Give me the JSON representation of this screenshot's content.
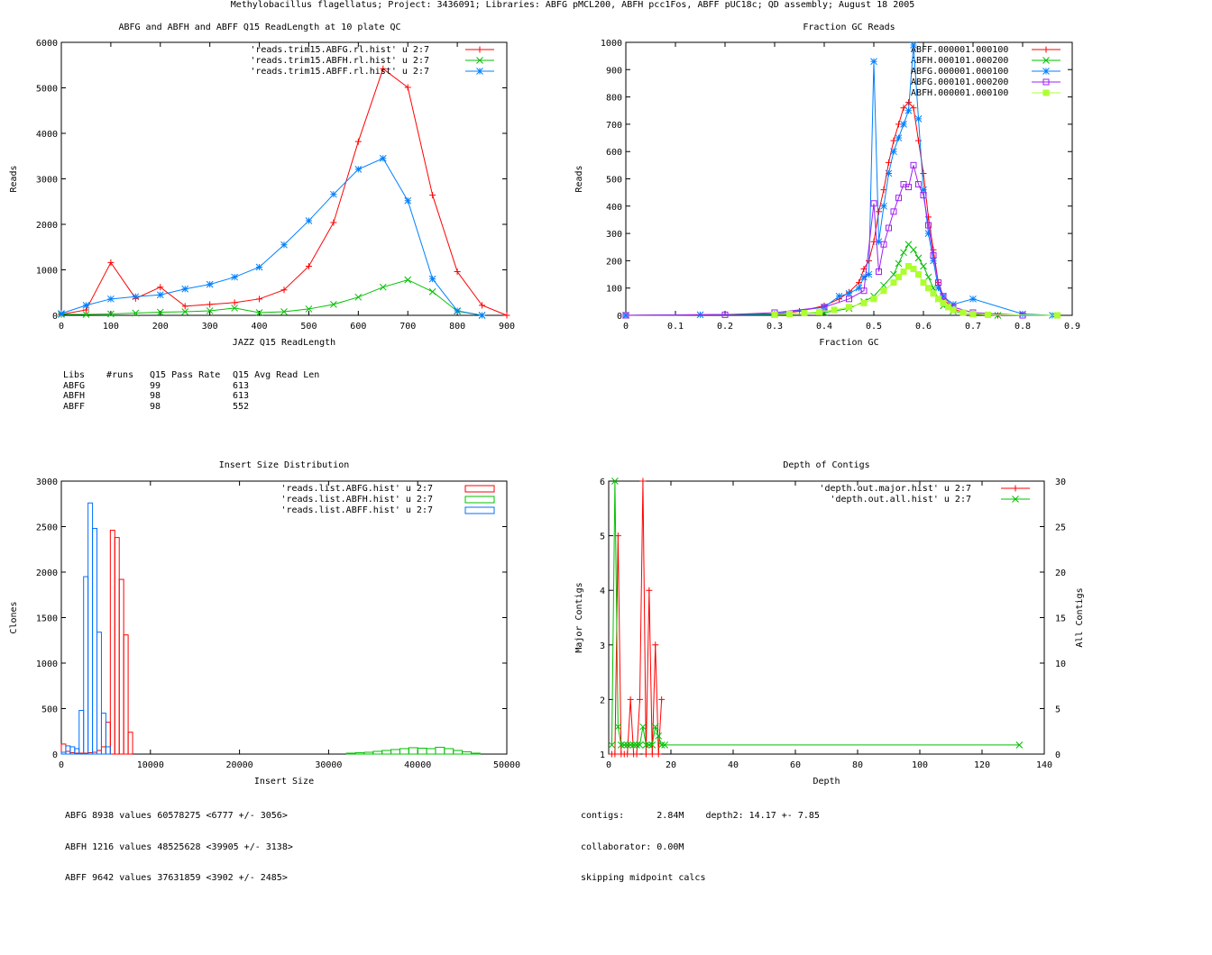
{
  "page_title": "Methylobacillus flagellatus; Project: 3436091; Libraries: ABFG pMCL200, ABFH pcc1Fos, ABFF pUC18c; QD assembly; August 18 2005",
  "chart_data": [
    {
      "id": "readlength",
      "type": "line",
      "title": "ABFG and ABFH and ABFF Q15 ReadLength at 10 plate QC",
      "xlabel": "JAZZ Q15 ReadLength",
      "ylabel": "Reads",
      "xlim": [
        0,
        900
      ],
      "ylim": [
        0,
        6000
      ],
      "xticks": [
        0,
        100,
        200,
        300,
        400,
        500,
        600,
        700,
        800,
        900
      ],
      "yticks": [
        0,
        1000,
        2000,
        3000,
        4000,
        5000,
        6000
      ],
      "legend_position": "top-right",
      "series": [
        {
          "name": "'reads.trim15.ABFG.rl.hist' u 2:7",
          "color": "#ff0000",
          "marker": "plus",
          "x": [
            0,
            50,
            100,
            150,
            200,
            250,
            300,
            350,
            400,
            450,
            500,
            550,
            600,
            650,
            700,
            750,
            800,
            850,
            900
          ],
          "y": [
            20,
            120,
            1160,
            370,
            620,
            200,
            240,
            280,
            360,
            560,
            1080,
            2040,
            3820,
            5420,
            5010,
            2640,
            960,
            220,
            0
          ]
        },
        {
          "name": "'reads.trim15.ABFH.rl.hist' u 2:7",
          "color": "#00c000",
          "marker": "cross",
          "x": [
            0,
            50,
            100,
            150,
            200,
            250,
            300,
            350,
            400,
            450,
            500,
            550,
            600,
            650,
            700,
            750,
            800,
            850
          ],
          "y": [
            20,
            20,
            30,
            50,
            70,
            80,
            100,
            160,
            60,
            80,
            140,
            240,
            400,
            620,
            780,
            520,
            90,
            0
          ]
        },
        {
          "name": "'reads.trim15.ABFF.rl.hist' u 2:7",
          "color": "#0080ff",
          "marker": "star",
          "x": [
            0,
            50,
            100,
            150,
            200,
            250,
            300,
            350,
            400,
            450,
            500,
            550,
            600,
            650,
            700,
            750,
            800,
            850
          ],
          "y": [
            40,
            220,
            360,
            410,
            450,
            580,
            680,
            840,
            1060,
            1550,
            2080,
            2660,
            3210,
            3450,
            2520,
            800,
            100,
            0
          ]
        }
      ]
    },
    {
      "id": "gc",
      "type": "line",
      "title": "Fraction GC Reads",
      "xlabel": "Fraction GC",
      "ylabel": "Reads",
      "xlim": [
        0,
        0.9
      ],
      "ylim": [
        0,
        1000
      ],
      "xticks": [
        0,
        0.1,
        0.2,
        0.3,
        0.4,
        0.5,
        0.6,
        0.7,
        0.8,
        0.9
      ],
      "yticks": [
        0,
        100,
        200,
        300,
        400,
        500,
        600,
        700,
        800,
        900,
        1000
      ],
      "legend_position": "top-right",
      "series": [
        {
          "name": "ABFF.000001.000100",
          "color": "#ff0000",
          "marker": "plus",
          "x": [
            0,
            0.3,
            0.35,
            0.4,
            0.43,
            0.45,
            0.47,
            0.48,
            0.49,
            0.5,
            0.51,
            0.52,
            0.53,
            0.54,
            0.55,
            0.56,
            0.57,
            0.58,
            0.59,
            0.6,
            0.61,
            0.62,
            0.63,
            0.64,
            0.66,
            0.68,
            0.7,
            0.75
          ],
          "y": [
            0,
            5,
            15,
            35,
            60,
            85,
            120,
            170,
            200,
            270,
            380,
            460,
            560,
            640,
            700,
            760,
            780,
            760,
            640,
            520,
            360,
            240,
            120,
            60,
            25,
            10,
            5,
            0
          ]
        },
        {
          "name": "ABFH.000101.000200",
          "color": "#00c000",
          "marker": "cross",
          "x": [
            0,
            0.3,
            0.4,
            0.45,
            0.48,
            0.5,
            0.52,
            0.54,
            0.55,
            0.56,
            0.57,
            0.58,
            0.59,
            0.6,
            0.61,
            0.62,
            0.63,
            0.64,
            0.66,
            0.7,
            0.75
          ],
          "y": [
            0,
            3,
            10,
            25,
            50,
            70,
            110,
            150,
            190,
            230,
            260,
            240,
            210,
            180,
            140,
            100,
            60,
            35,
            15,
            5,
            0
          ]
        },
        {
          "name": "ABFG.000001.000100",
          "color": "#0080ff",
          "marker": "star",
          "x": [
            0,
            0.15,
            0.3,
            0.4,
            0.43,
            0.45,
            0.47,
            0.48,
            0.49,
            0.5,
            0.51,
            0.52,
            0.53,
            0.54,
            0.55,
            0.56,
            0.57,
            0.58,
            0.59,
            0.6,
            0.61,
            0.62,
            0.63,
            0.64,
            0.66,
            0.7,
            0.8,
            0.86
          ],
          "y": [
            0,
            2,
            5,
            30,
            70,
            80,
            100,
            140,
            150,
            930,
            270,
            400,
            520,
            600,
            650,
            700,
            750,
            990,
            720,
            460,
            300,
            200,
            100,
            70,
            40,
            60,
            5,
            0
          ]
        },
        {
          "name": "ABFG.000101.000200",
          "color": "#a020f0",
          "marker": "square",
          "x": [
            0,
            0.2,
            0.3,
            0.4,
            0.45,
            0.48,
            0.5,
            0.51,
            0.52,
            0.53,
            0.54,
            0.55,
            0.56,
            0.57,
            0.58,
            0.59,
            0.6,
            0.61,
            0.62,
            0.63,
            0.64,
            0.66,
            0.7,
            0.8
          ],
          "y": [
            0,
            2,
            10,
            30,
            60,
            90,
            410,
            160,
            260,
            320,
            380,
            430,
            480,
            470,
            550,
            480,
            440,
            330,
            220,
            120,
            70,
            30,
            10,
            0
          ]
        },
        {
          "name": "ABFH.000001.000100",
          "color": "#adff2f",
          "marker": "filled-square",
          "x": [
            0.3,
            0.33,
            0.36,
            0.39,
            0.42,
            0.45,
            0.48,
            0.5,
            0.52,
            0.54,
            0.55,
            0.56,
            0.57,
            0.58,
            0.59,
            0.6,
            0.61,
            0.62,
            0.63,
            0.64,
            0.65,
            0.66,
            0.68,
            0.7,
            0.73,
            0.87
          ],
          "y": [
            2,
            5,
            8,
            12,
            20,
            30,
            45,
            60,
            90,
            120,
            140,
            160,
            180,
            170,
            150,
            120,
            100,
            80,
            60,
            45,
            30,
            20,
            10,
            5,
            2,
            0
          ]
        }
      ]
    },
    {
      "id": "insert",
      "type": "histogram",
      "title": "Insert Size Distribution",
      "xlabel": "Insert Size",
      "ylabel": "Clones",
      "xlim": [
        0,
        50000
      ],
      "ylim": [
        0,
        3000
      ],
      "xticks": [
        0,
        10000,
        20000,
        30000,
        40000,
        50000
      ],
      "yticks": [
        0,
        500,
        1000,
        1500,
        2000,
        2500,
        3000
      ],
      "legend_position": "top-right",
      "series": [
        {
          "name": "'reads.list.ABFG.hist' u 2:7",
          "color": "#ff0000",
          "x": [
            0,
            500,
            1000,
            1500,
            2000,
            2500,
            3000,
            3500,
            4000,
            4500,
            5000,
            5500,
            6000,
            6500,
            7000,
            7500,
            8000
          ],
          "y": [
            110,
            30,
            15,
            10,
            10,
            10,
            15,
            20,
            40,
            80,
            350,
            2460,
            2380,
            1920,
            1310,
            240,
            0
          ]
        },
        {
          "name": "'reads.list.ABFH.hist' u 2:7",
          "color": "#00c000",
          "x": [
            32000,
            33000,
            34000,
            35000,
            36000,
            37000,
            38000,
            39000,
            40000,
            41000,
            42000,
            43000,
            44000,
            45000,
            46000
          ],
          "y": [
            10,
            15,
            20,
            30,
            40,
            50,
            60,
            70,
            65,
            60,
            75,
            60,
            40,
            25,
            10
          ]
        },
        {
          "name": "'reads.list.ABFF.hist' u 2:7",
          "color": "#0070ff",
          "x": [
            0,
            500,
            1000,
            1500,
            2000,
            2500,
            3000,
            3500,
            4000,
            4500,
            5000,
            5500
          ],
          "y": [
            20,
            90,
            80,
            60,
            480,
            1950,
            2760,
            2480,
            1340,
            450,
            80,
            0
          ]
        }
      ]
    },
    {
      "id": "depth",
      "type": "line",
      "title": "Depth of Contigs",
      "xlabel": "Depth",
      "ylabel": "Major Contigs",
      "y2label": "All Contigs",
      "xlim": [
        0,
        140
      ],
      "ylim": [
        1,
        6
      ],
      "y2lim": [
        0,
        30
      ],
      "xticks": [
        0,
        20,
        40,
        60,
        80,
        100,
        120,
        140
      ],
      "yticks": [
        1,
        2,
        3,
        4,
        5,
        6
      ],
      "y2ticks": [
        0,
        5,
        10,
        15,
        20,
        25,
        30
      ],
      "legend_position": "top-right",
      "series": [
        {
          "name": "'depth.out.major.hist' u 2:7",
          "color": "#ff0000",
          "marker": "plus",
          "axis": "left",
          "x": [
            1,
            2,
            3,
            4,
            5,
            6,
            7,
            8,
            9,
            10,
            11,
            12,
            13,
            14,
            15,
            16,
            17
          ],
          "y": [
            1,
            1,
            5,
            1,
            1,
            1,
            2,
            1,
            1,
            2,
            6,
            1,
            4,
            1,
            3,
            1,
            2
          ]
        },
        {
          "name": "'depth.out.all.hist' u 2:7",
          "color": "#00c000",
          "marker": "cross",
          "axis": "right",
          "x": [
            1,
            2,
            3,
            4,
            5,
            6,
            7,
            8,
            9,
            10,
            11,
            12,
            13,
            14,
            15,
            16,
            17,
            18,
            132
          ],
          "y": [
            1,
            30,
            3,
            1,
            1,
            1,
            1,
            1,
            1,
            1,
            3,
            1,
            1,
            1,
            3,
            2,
            1,
            1,
            1
          ]
        }
      ]
    }
  ],
  "readlength_stats": {
    "header": [
      "Libs",
      "#runs",
      "Q15 Pass Rate",
      "Q15 Avg Read Len"
    ],
    "rows": [
      [
        "ABFG",
        "",
        "99",
        "613"
      ],
      [
        "ABFH",
        "",
        "98",
        "613"
      ],
      [
        "ABFF",
        "",
        "98",
        "552"
      ]
    ]
  },
  "insert_stats": [
    "ABFG 8938 values 60578275 <6777 +/- 3056>",
    "ABFH 1216 values 48525628 <39905 +/- 3138>",
    "ABFF 9642 values 37631859 <3902 +/- 2485>"
  ],
  "depth_stats": [
    "contigs:      2.84M    depth2: 14.17 +- 7.85",
    "collaborator: 0.00M",
    "skipping midpoint calcs"
  ]
}
